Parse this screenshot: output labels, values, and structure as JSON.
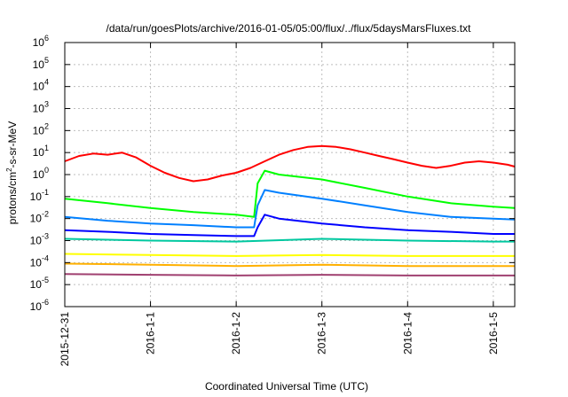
{
  "chart_data": {
    "type": "line",
    "title": "/data/run/goesPlots/archive/2016-01-05/05:00/flux/../flux/5daysMarsFluxes.txt",
    "xlabel": "Coordinated Universal Time (UTC)",
    "ylabel": {
      "base": "protons/cm",
      "exp": "2",
      "rest": "-s-sr-MeV"
    },
    "yscale": "log",
    "ylim": [
      -6,
      6
    ],
    "xlim": [
      "2015-12-31",
      "2016-01-05T06:00"
    ],
    "x_ticks": [
      "2015-12-31",
      "2016-1-1",
      "2016-1-2",
      "2016-1-3",
      "2016-1-4",
      "2016-1-5"
    ],
    "y_ticks": [
      {
        "base": "10",
        "exp": "-6"
      },
      {
        "base": "10",
        "exp": "-5"
      },
      {
        "base": "10",
        "exp": "-4"
      },
      {
        "base": "10",
        "exp": "-3"
      },
      {
        "base": "10",
        "exp": "-2"
      },
      {
        "base": "10",
        "exp": "-1"
      },
      {
        "base": "10",
        "exp": "0"
      },
      {
        "base": "10",
        "exp": "1"
      },
      {
        "base": "10",
        "exp": "2"
      },
      {
        "base": "10",
        "exp": "3"
      },
      {
        "base": "10",
        "exp": "4"
      },
      {
        "base": "10",
        "exp": "5"
      },
      {
        "base": "10",
        "exp": "6"
      }
    ],
    "grid": true,
    "legend": "none",
    "series": [
      {
        "color": "#ff0000",
        "x": [
          "2015-12-31T00:00",
          "2015-12-31T04:00",
          "2015-12-31T08:00",
          "2015-12-31T12:00",
          "2015-12-31T16:00",
          "2015-12-31T20:00",
          "2016-01-01T00:00",
          "2016-01-01T04:00",
          "2016-01-01T08:00",
          "2016-01-01T12:00",
          "2016-01-01T16:00",
          "2016-01-01T20:00",
          "2016-01-02T00:00",
          "2016-01-02T04:00",
          "2016-01-02T08:00",
          "2016-01-02T12:00",
          "2016-01-02T16:00",
          "2016-01-02T20:00",
          "2016-01-03T00:00",
          "2016-01-03T04:00",
          "2016-01-03T08:00",
          "2016-01-03T12:00",
          "2016-01-03T16:00",
          "2016-01-03T20:00",
          "2016-01-04T00:00",
          "2016-01-04T04:00",
          "2016-01-04T08:00",
          "2016-01-04T12:00",
          "2016-01-04T16:00",
          "2016-01-04T20:00",
          "2016-01-05T00:00",
          "2016-01-05T04:00",
          "2016-01-05T06:00"
        ],
        "y": [
          4,
          7,
          9,
          8,
          10,
          6,
          2.5,
          1.2,
          0.7,
          0.5,
          0.6,
          0.9,
          1.2,
          2,
          4,
          8,
          13,
          18,
          20,
          18,
          14,
          10,
          7,
          5,
          3.5,
          2.5,
          2,
          2.5,
          3.5,
          4,
          3.5,
          2.8,
          2.3
        ]
      },
      {
        "color": "#00ff00",
        "x": [
          "2015-12-31T00:00",
          "2015-12-31T12:00",
          "2016-01-01T00:00",
          "2016-01-01T12:00",
          "2016-01-02T00:00",
          "2016-01-02T05:00",
          "2016-01-02T06:00",
          "2016-01-02T08:00",
          "2016-01-02T12:00",
          "2016-01-03T00:00",
          "2016-01-03T12:00",
          "2016-01-04T00:00",
          "2016-01-04T12:00",
          "2016-01-05T00:00",
          "2016-01-05T06:00"
        ],
        "y": [
          0.08,
          0.05,
          0.03,
          0.02,
          0.015,
          0.012,
          0.4,
          1.5,
          1.0,
          0.6,
          0.25,
          0.1,
          0.05,
          0.035,
          0.03
        ]
      },
      {
        "color": "#0080ff",
        "x": [
          "2015-12-31T00:00",
          "2015-12-31T12:00",
          "2016-01-01T00:00",
          "2016-01-01T12:00",
          "2016-01-02T00:00",
          "2016-01-02T05:00",
          "2016-01-02T06:00",
          "2016-01-02T08:00",
          "2016-01-02T12:00",
          "2016-01-03T00:00",
          "2016-01-03T12:00",
          "2016-01-04T00:00",
          "2016-01-04T12:00",
          "2016-01-05T00:00",
          "2016-01-05T06:00"
        ],
        "y": [
          0.012,
          0.008,
          0.006,
          0.005,
          0.004,
          0.004,
          0.04,
          0.2,
          0.15,
          0.08,
          0.04,
          0.02,
          0.012,
          0.01,
          0.009
        ]
      },
      {
        "color": "#0000ff",
        "x": [
          "2015-12-31T00:00",
          "2015-12-31T12:00",
          "2016-01-01T00:00",
          "2016-01-01T12:00",
          "2016-01-02T00:00",
          "2016-01-02T05:00",
          "2016-01-02T06:00",
          "2016-01-02T08:00",
          "2016-01-02T12:00",
          "2016-01-03T00:00",
          "2016-01-03T12:00",
          "2016-01-04T00:00",
          "2016-01-04T12:00",
          "2016-01-05T00:00",
          "2016-01-05T06:00"
        ],
        "y": [
          0.003,
          0.0025,
          0.002,
          0.0018,
          0.0016,
          0.0016,
          0.004,
          0.015,
          0.01,
          0.006,
          0.004,
          0.003,
          0.0025,
          0.002,
          0.002
        ]
      },
      {
        "color": "#00c8a0",
        "x": [
          "2015-12-31T00:00",
          "2016-01-01T00:00",
          "2016-01-02T00:00",
          "2016-01-03T00:00",
          "2016-01-04T00:00",
          "2016-01-05T00:00",
          "2016-01-05T06:00"
        ],
        "y": [
          0.0012,
          0.001,
          0.0009,
          0.0012,
          0.001,
          0.0009,
          0.0009
        ]
      },
      {
        "color": "#ffff00",
        "x": [
          "2015-12-31T00:00",
          "2016-01-01T00:00",
          "2016-01-02T00:00",
          "2016-01-03T00:00",
          "2016-01-04T00:00",
          "2016-01-05T00:00",
          "2016-01-05T06:00"
        ],
        "y": [
          0.00025,
          0.00022,
          0.0002,
          0.00022,
          0.0002,
          0.0002,
          0.0002
        ]
      },
      {
        "color": "#ffb000",
        "x": [
          "2015-12-31T00:00",
          "2016-01-01T00:00",
          "2016-01-02T00:00",
          "2016-01-03T00:00",
          "2016-01-04T00:00",
          "2016-01-05T00:00",
          "2016-01-05T06:00"
        ],
        "y": [
          9e-05,
          8e-05,
          7e-05,
          8e-05,
          7e-05,
          7e-05,
          7e-05
        ]
      },
      {
        "color": "#a04070",
        "x": [
          "2015-12-31T00:00",
          "2016-01-01T00:00",
          "2016-01-02T00:00",
          "2016-01-03T00:00",
          "2016-01-04T00:00",
          "2016-01-05T00:00",
          "2016-01-05T06:00"
        ],
        "y": [
          3e-05,
          2.8e-05,
          2.6e-05,
          2.8e-05,
          2.6e-05,
          2.6e-05,
          2.6e-05
        ]
      }
    ]
  }
}
